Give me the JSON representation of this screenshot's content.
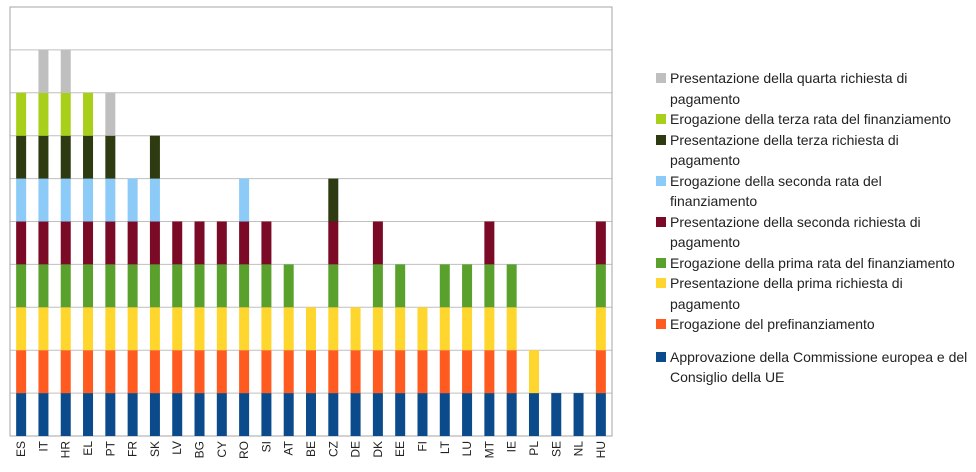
{
  "chart_data": {
    "type": "bar",
    "stacked": true,
    "grid": true,
    "legend_position": "right",
    "title": "",
    "xlabel": "",
    "ylabel": "",
    "ylim": [
      0,
      10
    ],
    "categories": [
      "ES",
      "IT",
      "HR",
      "EL",
      "PT",
      "FR",
      "SK",
      "LV",
      "BG",
      "CY",
      "RO",
      "SI",
      "AT",
      "BE",
      "CZ",
      "DE",
      "DK",
      "EE",
      "FI",
      "LT",
      "LU",
      "MT",
      "IE",
      "PL",
      "SE",
      "NL",
      "HU"
    ],
    "series": [
      {
        "name": "Approvazione della  Commissione europea e del Consiglio della UE",
        "color": "#0b4a8b",
        "values": [
          1,
          1,
          1,
          1,
          1,
          1,
          1,
          1,
          1,
          1,
          1,
          1,
          1,
          1,
          1,
          1,
          1,
          1,
          1,
          1,
          1,
          1,
          1,
          1,
          1,
          1,
          1
        ]
      },
      {
        "name": "Erogazione del prefinanziamento",
        "color": "#ff5a1f",
        "values": [
          1,
          1,
          1,
          1,
          1,
          1,
          1,
          1,
          1,
          1,
          1,
          1,
          1,
          1,
          1,
          1,
          1,
          1,
          1,
          1,
          1,
          1,
          1,
          0,
          0,
          0,
          1
        ]
      },
      {
        "name": "Presentazione della  prima richiesta di pagamento",
        "color": "#ffd62e",
        "values": [
          1,
          1,
          1,
          1,
          1,
          1,
          1,
          1,
          1,
          1,
          1,
          1,
          1,
          1,
          1,
          1,
          1,
          1,
          1,
          1,
          1,
          1,
          1,
          1,
          0,
          0,
          1
        ]
      },
      {
        "name": "Erogazione della  prima rata del finanziamento",
        "color": "#5aa02c",
        "values": [
          1,
          1,
          1,
          1,
          1,
          1,
          1,
          1,
          1,
          1,
          1,
          1,
          1,
          0,
          1,
          0,
          1,
          1,
          0,
          1,
          1,
          1,
          1,
          0,
          0,
          0,
          1
        ]
      },
      {
        "name": "Presentazione della seconda richiesta di pagamento",
        "color": "#7a0a26",
        "values": [
          1,
          1,
          1,
          1,
          1,
          1,
          1,
          1,
          1,
          1,
          1,
          1,
          0,
          0,
          1,
          0,
          1,
          0,
          0,
          0,
          0,
          1,
          0,
          0,
          0,
          0,
          1
        ]
      },
      {
        "name": "Erogazione della  seconda rata del finanziamento",
        "color": "#8ccaf7",
        "values": [
          1,
          1,
          1,
          1,
          1,
          1,
          1,
          0,
          0,
          0,
          1,
          0,
          0,
          0,
          0,
          0,
          0,
          0,
          0,
          0,
          0,
          0,
          0,
          0,
          0,
          0,
          0
        ]
      },
      {
        "name": "Presentazione della terza richiesta di pagamento",
        "color": "#2e3a10",
        "values": [
          1,
          1,
          1,
          1,
          1,
          0,
          1,
          0,
          0,
          0,
          0,
          0,
          0,
          0,
          1,
          0,
          0,
          0,
          0,
          0,
          0,
          0,
          0,
          0,
          0,
          0,
          0
        ]
      },
      {
        "name": "Erogazione della  terza rata del finanziamento",
        "color": "#a8cf1a",
        "values": [
          1,
          1,
          1,
          1,
          0,
          0,
          0,
          0,
          0,
          0,
          0,
          0,
          0,
          0,
          0,
          0,
          0,
          0,
          0,
          0,
          0,
          0,
          0,
          0,
          0,
          0,
          0
        ]
      },
      {
        "name": "Presentazione della quarta richiesta di pagamento",
        "color": "#bfbfbf",
        "values": [
          0,
          1,
          1,
          0,
          1,
          0,
          0,
          0,
          0,
          0,
          0,
          0,
          0,
          0,
          0,
          0,
          0,
          0,
          0,
          0,
          0,
          0,
          0,
          0,
          0,
          0,
          0
        ]
      }
    ]
  }
}
